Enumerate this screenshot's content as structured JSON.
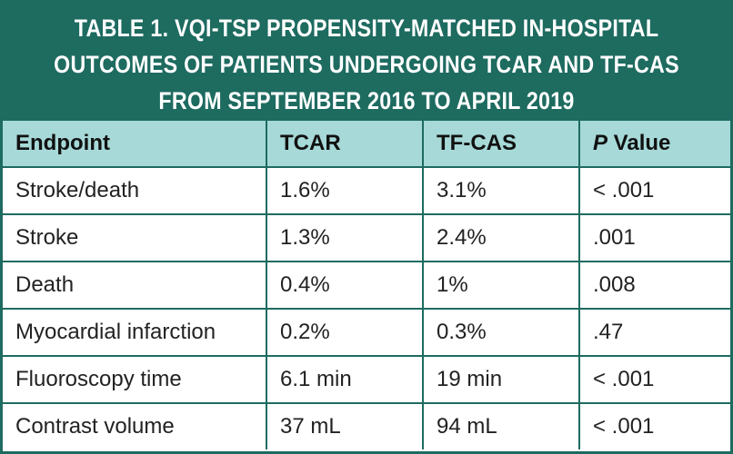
{
  "title": {
    "lines": [
      "TABLE 1.  VQI-TSP PROPENSITY-MATCHED IN-HOSPITAL",
      "OUTCOMES OF PATIENTS UNDERGOING TCAR AND TF-CAS",
      "FROM SEPTEMBER 2016 TO APRIL 2019"
    ]
  },
  "header": {
    "endpoint": "Endpoint",
    "tcar": "TCAR",
    "tfcas": "TF-CAS",
    "p_letter": "P",
    "p_rest": " Value"
  },
  "rows": [
    {
      "endpoint": "Stroke/death",
      "tcar": "1.6%",
      "tfcas": "3.1%",
      "p": "< .001"
    },
    {
      "endpoint": "Stroke",
      "tcar": "1.3%",
      "tfcas": "2.4%",
      "p": ".001"
    },
    {
      "endpoint": "Death",
      "tcar": "0.4%",
      "tfcas": "1%",
      "p": ".008"
    },
    {
      "endpoint": "Myocardial infarction",
      "tcar": "0.2%",
      "tfcas": "0.3%",
      "p": ".47"
    },
    {
      "endpoint": "Fluoroscopy time",
      "tcar": "6.1 min",
      "tfcas": "19 min",
      "p": "< .001"
    },
    {
      "endpoint": "Contrast volume",
      "tcar": "37 mL",
      "tfcas": "94 mL",
      "p": "< .001"
    }
  ],
  "colors": {
    "title_bg": "#1e6b60",
    "header_bg": "#a6d9d8",
    "border": "#1e6b60"
  }
}
